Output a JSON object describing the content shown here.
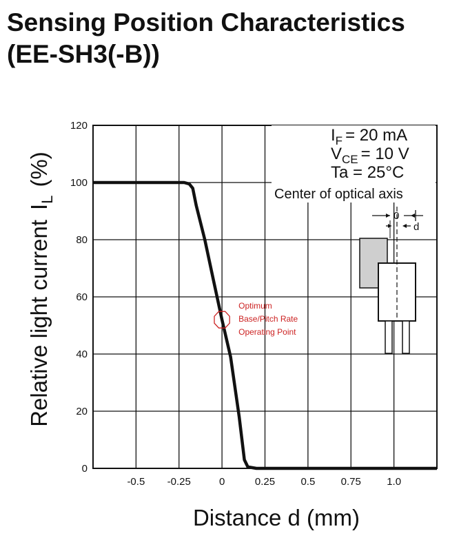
{
  "page": {
    "title_line1": "Sensing Position Characteristics",
    "title_line2": "(EE-SH3(-B))"
  },
  "chart_data": {
    "type": "line",
    "title": "Sensing Position Characteristics (EE-SH3(-B))",
    "xlabel": "Distance d (mm)",
    "ylabel_main": "Relative light current",
    "ylabel_symbol": "I",
    "ylabel_symbol_sub": "L",
    "ylabel_unit": "(%)",
    "xlim": [
      -0.75,
      1.25
    ],
    "ylim": [
      0,
      120
    ],
    "x_ticks": [
      -0.5,
      -0.25,
      0,
      0.25,
      0.5,
      0.75,
      1.0
    ],
    "x_tick_labels": [
      "-0.5",
      "-0.25",
      "0",
      "0.25",
      "0.5",
      "0.75",
      "1.0"
    ],
    "y_ticks": [
      0,
      20,
      40,
      60,
      80,
      100,
      120
    ],
    "y_tick_labels": [
      "0",
      "20",
      "40",
      "60",
      "80",
      "100",
      "120"
    ],
    "grid": true,
    "series": [
      {
        "x": [
          -0.75,
          -0.55,
          -0.35,
          -0.22,
          -0.19,
          -0.17,
          -0.15,
          -0.1,
          -0.05,
          0,
          0.05,
          0.1,
          0.13,
          0.15,
          0.2,
          0.5,
          1.0,
          1.25
        ],
        "y": [
          100,
          100,
          100,
          100,
          99.5,
          98,
          92,
          80,
          66,
          52,
          39,
          18,
          3,
          0.5,
          0,
          0,
          0,
          0
        ]
      }
    ],
    "conditions": {
      "if_sym": "I",
      "if_sub": "F",
      "if_val": "= 20 mA",
      "vce_sym": "V",
      "vce_sub": "CE",
      "vce_val": "= 10 V",
      "ta": "Ta = 25°C"
    },
    "optical_axis_label": "Center of optical axis",
    "inset_zero": "0",
    "inset_d": "d",
    "annotation": {
      "lines": [
        "Optimum",
        "Base/Pitch Rate",
        "Operating Point"
      ],
      "x": 0,
      "y": 52,
      "color": "#cc2222"
    }
  }
}
